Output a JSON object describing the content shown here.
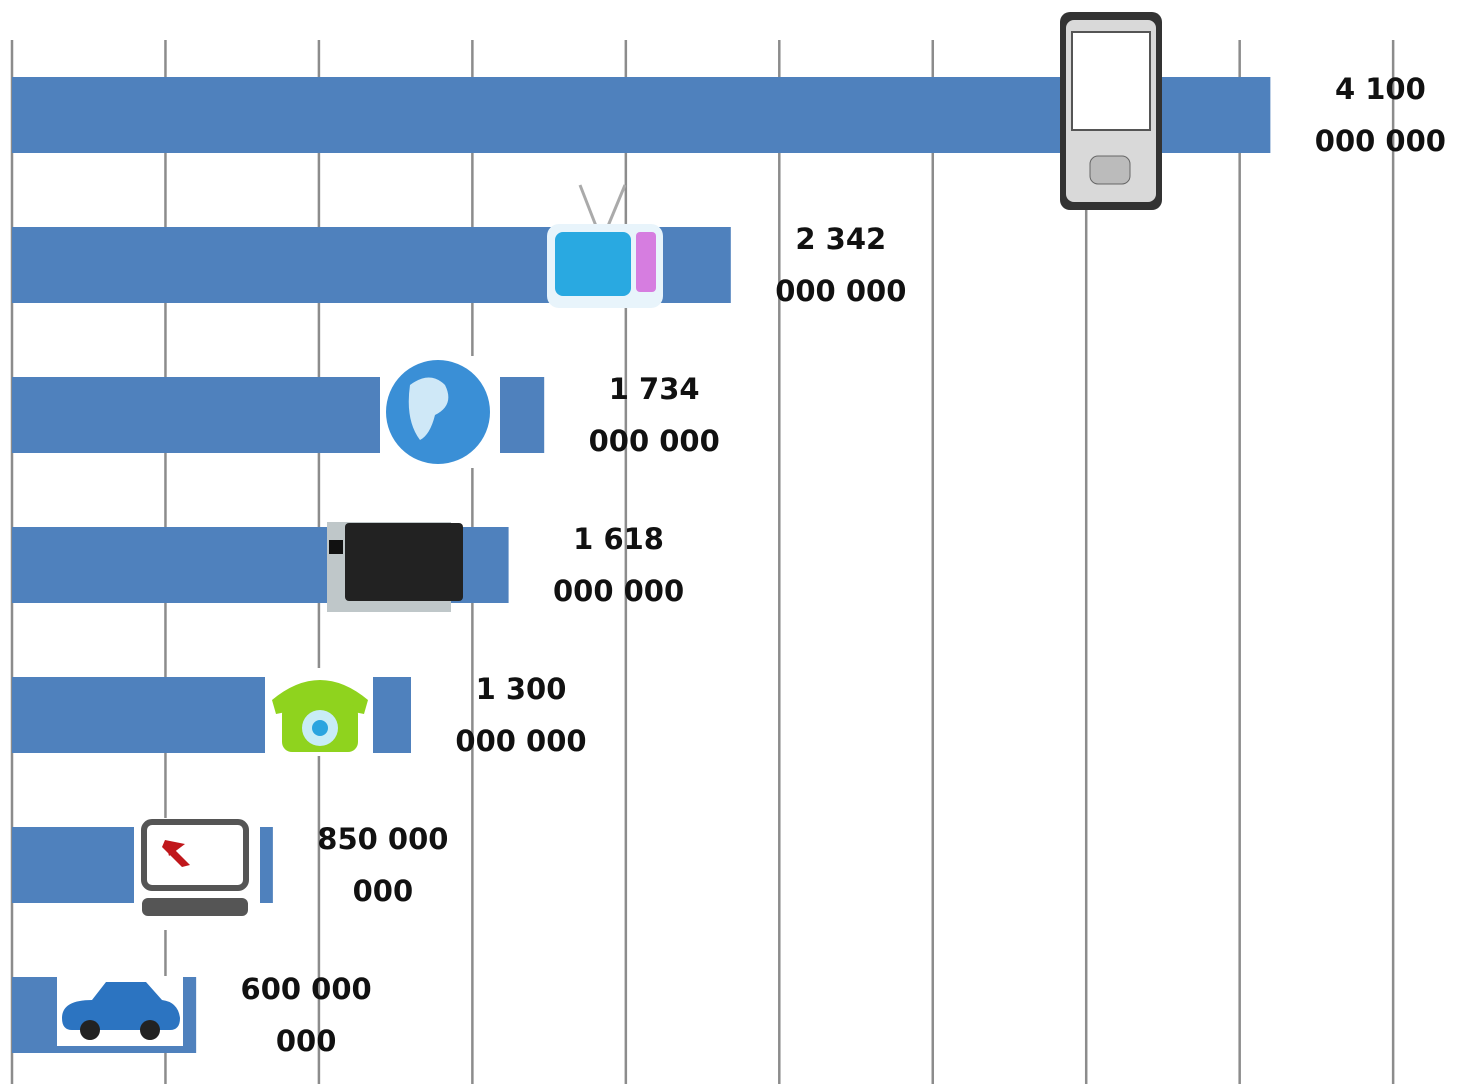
{
  "chart_data": {
    "type": "barh",
    "values": [
      4100000000,
      2342000000,
      1734000000,
      1618000000,
      1300000000,
      850000000,
      600000000
    ],
    "value_labels": [
      "4 100 000 000",
      "2 342 000 000",
      "1 734 000 000",
      "1 618 000 000",
      "1 300 000 000",
      "850 000 000",
      "600 000 000"
    ],
    "color": "#4f81bd",
    "xlim": [
      0,
      4770000000
    ],
    "xticks": [
      0,
      500000000,
      1000000000,
      1500000000,
      2000000000,
      2500000000,
      3000000000,
      3500000000,
      4000000000,
      4500000000
    ],
    "grid": true
  }
}
